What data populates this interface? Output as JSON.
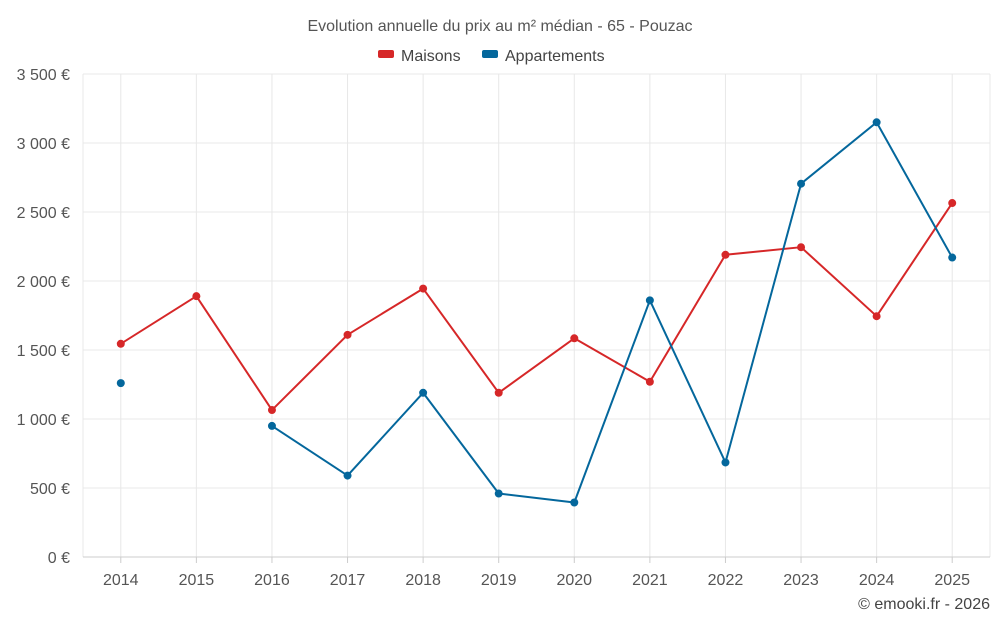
{
  "chart_data": {
    "type": "line",
    "title": "Evolution annuelle du prix au m² médian - 65 - Pouzac",
    "categories": [
      "2014",
      "2015",
      "2016",
      "2017",
      "2018",
      "2019",
      "2020",
      "2021",
      "2022",
      "2023",
      "2024",
      "2025"
    ],
    "series": [
      {
        "name": "Maisons",
        "color": "#d62728",
        "values": [
          1545,
          1890,
          1065,
          1610,
          1945,
          1190,
          1585,
          1270,
          2190,
          2245,
          1745,
          2565
        ]
      },
      {
        "name": "Appartements",
        "color": "#04679c",
        "values": [
          1260,
          null,
          950,
          590,
          1190,
          460,
          395,
          1860,
          685,
          2705,
          3150,
          2170
        ]
      }
    ],
    "yticks": [
      "0 €",
      "500 €",
      "1 000 €",
      "1 500 €",
      "2 000 €",
      "2 500 €",
      "3 000 €",
      "3 500 €"
    ],
    "ytick_values": [
      0,
      500,
      1000,
      1500,
      2000,
      2500,
      3000,
      3500
    ],
    "ylim": [
      0,
      3500
    ],
    "xlabel": "",
    "ylabel": "",
    "legend_position": "top-center",
    "grid": true
  },
  "credit": "© emooki.fr - 2026"
}
